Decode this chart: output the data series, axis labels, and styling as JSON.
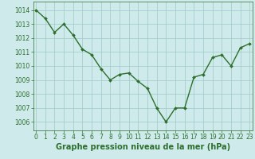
{
  "x": [
    0,
    1,
    2,
    3,
    4,
    5,
    6,
    7,
    8,
    9,
    10,
    11,
    12,
    13,
    14,
    15,
    16,
    17,
    18,
    19,
    20,
    21,
    22,
    23
  ],
  "y": [
    1014.0,
    1013.4,
    1012.4,
    1013.0,
    1012.2,
    1011.2,
    1010.8,
    1009.8,
    1009.0,
    1009.4,
    1009.5,
    1008.9,
    1008.4,
    1007.0,
    1006.0,
    1007.0,
    1007.0,
    1009.2,
    1009.4,
    1010.6,
    1010.8,
    1010.0,
    1011.3,
    1011.6
  ],
  "line_color": "#2d6e2d",
  "marker": "D",
  "marker_size": 2.0,
  "linewidth": 1.0,
  "xlabel": "Graphe pression niveau de la mer (hPa)",
  "xlabel_fontsize": 7.0,
  "xlabel_fontweight": "bold",
  "xlabel_color": "#2d6e2d",
  "background_color": "#ceeaea",
  "grid_color": "#a0c8c8",
  "tick_color": "#2d6e2d",
  "tick_fontsize": 5.5,
  "ylim": [
    1005.4,
    1014.6
  ],
  "yticks": [
    1006,
    1007,
    1008,
    1009,
    1010,
    1011,
    1012,
    1013,
    1014
  ],
  "xlim": [
    -0.3,
    23.3
  ],
  "xticks": [
    0,
    1,
    2,
    3,
    4,
    5,
    6,
    7,
    8,
    9,
    10,
    11,
    12,
    13,
    14,
    15,
    16,
    17,
    18,
    19,
    20,
    21,
    22,
    23
  ]
}
